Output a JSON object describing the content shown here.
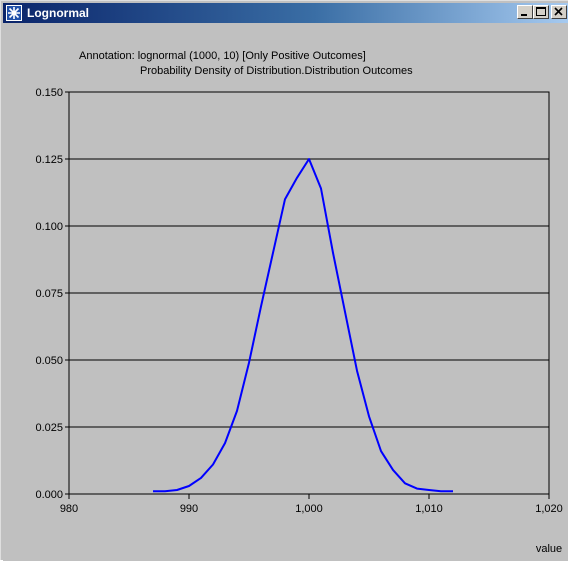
{
  "window": {
    "title": "Lognormal",
    "icon": "star-app-icon",
    "controls": [
      "minimize",
      "maximize",
      "close"
    ],
    "title_bar_colors": [
      "#0a246a",
      "#a6caf0"
    ]
  },
  "chart_header": {
    "annotation": "Annotation: lognormal (1000, 10) [Only Positive Outcomes]",
    "subtitle": "Probability Density of Distribution.Distribution Outcomes"
  },
  "chart_data": {
    "type": "line",
    "title": "Probability Density of Distribution.Distribution Outcomes",
    "xlabel": "value",
    "ylabel": "",
    "xlim": [
      980,
      1020
    ],
    "ylim": [
      0,
      0.15
    ],
    "x_ticks": [
      "980",
      "990",
      "1,000",
      "1,010",
      "1,020"
    ],
    "y_ticks": [
      "0.000",
      "0.025",
      "0.050",
      "0.075",
      "0.100",
      "0.125",
      "0.150"
    ],
    "grid": "horizontal",
    "line_color": "#0000ff",
    "series": [
      {
        "x": [
          987,
          988,
          989,
          990,
          991,
          992,
          993,
          994,
          995,
          996,
          997,
          998,
          999,
          1000,
          1001,
          1002,
          1003,
          1004,
          1005,
          1006,
          1007,
          1008,
          1009,
          1010,
          1011,
          1012
        ],
        "y": [
          0.001,
          0.001,
          0.0015,
          0.003,
          0.006,
          0.011,
          0.019,
          0.031,
          0.049,
          0.07,
          0.09,
          0.11,
          0.118,
          0.125,
          0.114,
          0.09,
          0.068,
          0.046,
          0.029,
          0.016,
          0.009,
          0.004,
          0.002,
          0.0015,
          0.001,
          0.001
        ]
      }
    ]
  }
}
